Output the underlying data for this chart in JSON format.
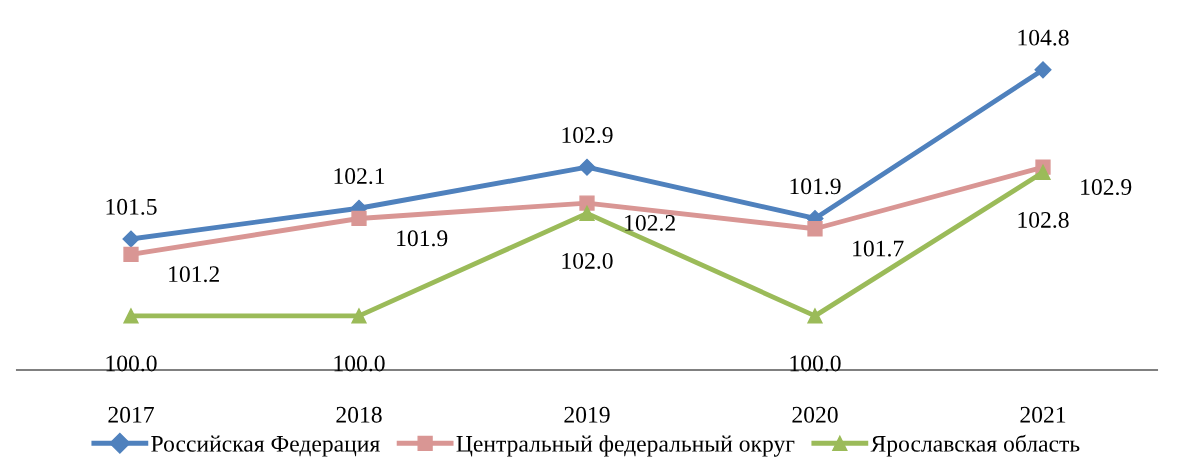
{
  "chart_data": {
    "type": "line",
    "categories": [
      "2017",
      "2018",
      "2019",
      "2020",
      "2021"
    ],
    "series": [
      {
        "name": "Российская Федерация",
        "color": "#4f81bd",
        "marker": "diamond",
        "values": [
          101.5,
          102.1,
          102.9,
          101.9,
          104.8
        ],
        "value_labels": [
          "101.5",
          "102.1",
          "102.9",
          "101.9",
          "104.8"
        ]
      },
      {
        "name": "Центральный федеральный округ",
        "color": "#d99694",
        "marker": "square",
        "values": [
          101.2,
          101.9,
          102.2,
          101.7,
          102.9
        ],
        "value_labels": [
          "101.2",
          "101.9",
          "102.2",
          "101.7",
          "102.9"
        ]
      },
      {
        "name": "Ярославская область",
        "color": "#9bbb59",
        "marker": "triangle",
        "values": [
          100.0,
          100.0,
          102.0,
          100.0,
          102.8
        ],
        "value_labels": [
          "100.0",
          "100.0",
          "102.0",
          "100.0",
          "102.8"
        ]
      }
    ],
    "legend": "bottom",
    "grid": false
  }
}
